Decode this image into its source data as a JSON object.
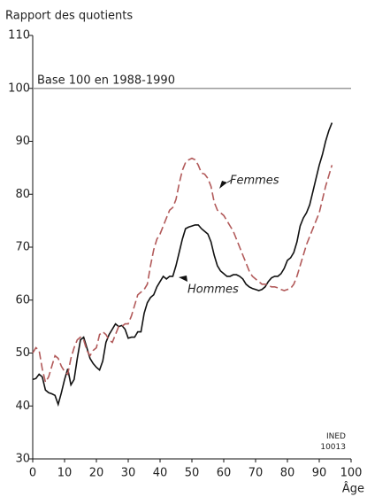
{
  "chart_data": {
    "type": "line",
    "y_label": "Rapport des quotients",
    "x_label": "Âge",
    "note": "INED\n10013",
    "reference_line": {
      "value": 100,
      "label": "Base 100 en 1988-1990",
      "color": "#9a9a9a"
    },
    "xlim": [
      0,
      100
    ],
    "xticks": [
      0,
      10,
      20,
      30,
      40,
      50,
      60,
      70,
      80,
      90,
      100
    ],
    "ylim": [
      30,
      110
    ],
    "yticks": [
      30,
      40,
      50,
      60,
      70,
      80,
      90,
      100,
      110
    ],
    "x": [
      0,
      1,
      2,
      3,
      4,
      5,
      6,
      7,
      8,
      9,
      10,
      11,
      12,
      13,
      14,
      15,
      16,
      17,
      18,
      19,
      20,
      21,
      22,
      23,
      24,
      25,
      26,
      27,
      28,
      29,
      30,
      31,
      32,
      33,
      34,
      35,
      36,
      37,
      38,
      39,
      40,
      41,
      42,
      43,
      44,
      45,
      46,
      47,
      48,
      49,
      50,
      51,
      52,
      53,
      54,
      55,
      56,
      57,
      58,
      59,
      60,
      61,
      62,
      63,
      64,
      65,
      66,
      67,
      68,
      69,
      70,
      71,
      72,
      73,
      74,
      75,
      76,
      77,
      78,
      79,
      80,
      81,
      82,
      83,
      84,
      85,
      86,
      87,
      88,
      89,
      90,
      91,
      92,
      93,
      94
    ],
    "series": [
      {
        "name": "Hommes",
        "color": "#111111",
        "dashed": false,
        "values": [
          45,
          45.2,
          46,
          45.5,
          43,
          42.5,
          42.3,
          42,
          40.3,
          42.5,
          45,
          47,
          44,
          45,
          49,
          52.5,
          53,
          51,
          49,
          48,
          47.3,
          46.8,
          48.5,
          52,
          53.5,
          54.5,
          55.5,
          55,
          55.2,
          54.5,
          52.8,
          53,
          53,
          54,
          54,
          57.5,
          59.5,
          60.5,
          61,
          62.5,
          63.5,
          64.5,
          64,
          64.5,
          64.5,
          66.5,
          69,
          71.5,
          73.5,
          73.8,
          74,
          74.2,
          74.2,
          73.5,
          73,
          72.5,
          71,
          68.5,
          66.5,
          65.5,
          65,
          64.5,
          64.5,
          64.8,
          64.8,
          64.5,
          64,
          63,
          62.5,
          62.2,
          62,
          61.8,
          62,
          62.5,
          63.5,
          64.2,
          64.5,
          64.5,
          65,
          66,
          67.5,
          68,
          69,
          71,
          74,
          75.5,
          76.5,
          78,
          80.5,
          83,
          85.5,
          87.5,
          90,
          92,
          93.5
        ]
      },
      {
        "name": "Femmes",
        "color": "#b25a5a",
        "dashed": true,
        "values": [
          50,
          51,
          50.5,
          47,
          44.5,
          45.5,
          47.5,
          49.5,
          49,
          47.5,
          46.5,
          46,
          49,
          51,
          52.5,
          53,
          52.5,
          50.5,
          49.5,
          50.5,
          51,
          53.5,
          54,
          53.5,
          52.5,
          52,
          53.5,
          55,
          55,
          55.5,
          55.5,
          57,
          59,
          61,
          61.5,
          62,
          63,
          66.5,
          69.5,
          71.5,
          72.5,
          74,
          75.5,
          77,
          77.5,
          79,
          82,
          84.5,
          86,
          86.5,
          86.8,
          86.5,
          85.5,
          84,
          83.8,
          83,
          81.5,
          78.5,
          77,
          76.5,
          76,
          75,
          74,
          73,
          71.5,
          70,
          68.5,
          67,
          65.5,
          64.5,
          64,
          63.5,
          63,
          63,
          62.8,
          62.5,
          62.5,
          62.3,
          62,
          61.8,
          62,
          62.2,
          63,
          64.5,
          66.5,
          68.5,
          70.5,
          72,
          73.5,
          75,
          76.5,
          79,
          81.5,
          83.5,
          85.5
        ]
      }
    ]
  }
}
